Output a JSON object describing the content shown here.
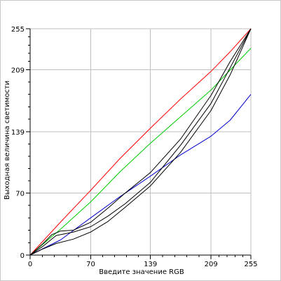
{
  "chart_data": {
    "type": "line",
    "title": "",
    "xlabel": "Введите значение RGB",
    "ylabel": "Выходная величина светимости",
    "xlim": [
      0,
      255
    ],
    "ylim": [
      0,
      255
    ],
    "xticks": [
      0,
      70,
      139,
      209,
      255
    ],
    "yticks": [
      0,
      70,
      139,
      209,
      255
    ],
    "grid": true,
    "colors": {
      "grid": "#bfbfbf",
      "axis": "#000000"
    },
    "series": [
      {
        "color": "#ff0000",
        "x": [
          0,
          35,
          70,
          104,
          139,
          174,
          209,
          231,
          255
        ],
        "y": [
          0,
          37,
          73,
          109,
          143,
          176,
          207,
          229,
          255
        ]
      },
      {
        "color": "#00cc00",
        "x": [
          0,
          35,
          70,
          104,
          139,
          174,
          209,
          255
        ],
        "y": [
          0,
          29,
          60,
          94,
          126,
          156,
          186,
          233
        ]
      },
      {
        "color": "#0000cc",
        "x": [
          0,
          35,
          70,
          104,
          139,
          174,
          209,
          231,
          255
        ],
        "y": [
          0,
          17,
          42,
          66,
          89,
          113,
          134,
          152,
          181
        ]
      },
      {
        "color": "#000000",
        "x": [
          0,
          15,
          30,
          50,
          70,
          90,
          110,
          139,
          174,
          209,
          231,
          255
        ],
        "y": [
          0,
          7,
          13,
          18,
          26,
          38,
          54,
          78,
          116,
          163,
          203,
          255
        ]
      },
      {
        "color": "#000000",
        "x": [
          0,
          15,
          30,
          50,
          70,
          90,
          110,
          139,
          174,
          209,
          231,
          255
        ],
        "y": [
          0,
          10,
          22,
          26,
          32,
          44,
          58,
          82,
          124,
          171,
          211,
          255
        ]
      },
      {
        "color": "#000000",
        "x": [
          0,
          15,
          25,
          35,
          50,
          70,
          90,
          110,
          139,
          174,
          209,
          231,
          255
        ],
        "y": [
          0,
          13,
          23,
          27,
          28,
          37,
          53,
          70,
          93,
          131,
          180,
          218,
          255
        ]
      }
    ]
  }
}
